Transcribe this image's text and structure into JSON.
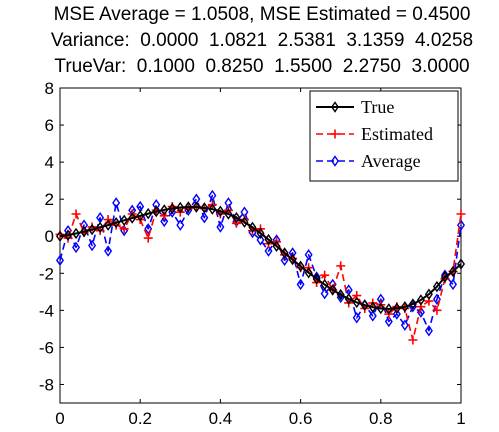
{
  "chart_data": {
    "type": "line",
    "title_lines": [
      "MSE Average = 1.0508, MSE Estimated = 0.4500",
      "Variance:  0.0000  1.0821  2.5381  3.1359  4.0258",
      "TrueVar:  0.1000  0.8250  1.5500  2.2750  3.0000"
    ],
    "xlim": [
      0,
      1
    ],
    "ylim": [
      -9,
      8
    ],
    "x_ticks": [
      0,
      0.2,
      0.4,
      0.6,
      0.8,
      1
    ],
    "x_tick_labels": [
      "0",
      "0.2",
      "0.4",
      "0.6",
      "0.8",
      "1"
    ],
    "y_ticks": [
      -8,
      -6,
      -4,
      -2,
      0,
      2,
      4,
      6,
      8
    ],
    "y_tick_labels": [
      "-8",
      "-6",
      "-4",
      "-2",
      "0",
      "2",
      "4",
      "6",
      "8"
    ],
    "grid": false,
    "legend_position": "top-right",
    "series": [
      {
        "name": "True",
        "color": "#000000",
        "line_style": "solid",
        "marker": "diamond",
        "x": [
          0.0,
          0.02,
          0.04,
          0.06,
          0.08,
          0.1,
          0.12,
          0.14,
          0.16,
          0.18,
          0.2,
          0.22,
          0.24,
          0.26,
          0.28,
          0.3,
          0.32,
          0.34,
          0.36,
          0.38,
          0.4,
          0.42,
          0.44,
          0.46,
          0.48,
          0.5,
          0.52,
          0.54,
          0.56,
          0.58,
          0.6,
          0.62,
          0.64,
          0.66,
          0.68,
          0.7,
          0.72,
          0.74,
          0.76,
          0.78,
          0.8,
          0.82,
          0.84,
          0.86,
          0.88,
          0.9,
          0.92,
          0.94,
          0.96,
          0.98,
          1.0
        ],
        "y": [
          0.0,
          0.06,
          0.15,
          0.25,
          0.36,
          0.48,
          0.6,
          0.73,
          0.86,
          0.98,
          1.1,
          1.22,
          1.33,
          1.42,
          1.5,
          1.55,
          1.58,
          1.57,
          1.53,
          1.46,
          1.35,
          1.2,
          1.0,
          0.76,
          0.48,
          0.16,
          -0.18,
          -0.54,
          -0.9,
          -1.26,
          -1.62,
          -1.97,
          -2.3,
          -2.61,
          -2.9,
          -3.15,
          -3.38,
          -3.57,
          -3.72,
          -3.83,
          -3.9,
          -3.92,
          -3.89,
          -3.81,
          -3.66,
          -3.44,
          -3.13,
          -2.72,
          -2.2,
          -1.9,
          -1.5
        ]
      },
      {
        "name": "Estimated",
        "color": "#ff0000",
        "line_style": "dashed",
        "marker": "plus",
        "x": [
          0.0,
          0.02,
          0.04,
          0.06,
          0.08,
          0.1,
          0.12,
          0.14,
          0.16,
          0.18,
          0.2,
          0.22,
          0.24,
          0.26,
          0.28,
          0.3,
          0.32,
          0.34,
          0.36,
          0.38,
          0.4,
          0.42,
          0.44,
          0.46,
          0.48,
          0.5,
          0.52,
          0.54,
          0.56,
          0.58,
          0.6,
          0.62,
          0.64,
          0.66,
          0.68,
          0.7,
          0.72,
          0.74,
          0.76,
          0.78,
          0.8,
          0.82,
          0.84,
          0.86,
          0.88,
          0.9,
          0.92,
          0.94,
          0.96,
          0.98,
          1.0
        ],
        "y": [
          0.1,
          -0.1,
          1.2,
          0.2,
          0.5,
          0.3,
          0.9,
          0.6,
          0.4,
          1.2,
          0.9,
          -0.1,
          1.4,
          1.1,
          1.6,
          1.3,
          1.5,
          1.6,
          1.5,
          1.7,
          1.2,
          1.4,
          0.7,
          0.9,
          0.3,
          0.4,
          -0.4,
          -0.3,
          -1.0,
          -1.2,
          -1.7,
          -1.7,
          -2.5,
          -2.1,
          -2.9,
          -1.6,
          -3.6,
          -3.2,
          -3.9,
          -3.6,
          -3.7,
          -4.2,
          -3.8,
          -3.9,
          -5.6,
          -3.8,
          -3.5,
          -4.0,
          -2.3,
          -1.9,
          1.2
        ]
      },
      {
        "name": "Average",
        "color": "#0000ff",
        "line_style": "dashed",
        "marker": "diamond",
        "x": [
          0.0,
          0.02,
          0.04,
          0.06,
          0.08,
          0.1,
          0.12,
          0.14,
          0.16,
          0.18,
          0.2,
          0.22,
          0.24,
          0.26,
          0.28,
          0.3,
          0.32,
          0.34,
          0.36,
          0.38,
          0.4,
          0.42,
          0.44,
          0.46,
          0.48,
          0.5,
          0.52,
          0.54,
          0.56,
          0.58,
          0.6,
          0.62,
          0.64,
          0.66,
          0.68,
          0.7,
          0.72,
          0.74,
          0.76,
          0.78,
          0.8,
          0.82,
          0.84,
          0.86,
          0.88,
          0.9,
          0.92,
          0.94,
          0.96,
          0.98,
          1.0
        ],
        "y": [
          -1.3,
          0.3,
          -0.6,
          0.6,
          -0.5,
          1.0,
          -0.8,
          1.8,
          0.3,
          1.4,
          1.6,
          0.4,
          1.7,
          0.8,
          1.3,
          0.6,
          1.4,
          2.0,
          1.0,
          2.2,
          0.5,
          1.8,
          0.8,
          1.3,
          0.2,
          -0.2,
          -0.8,
          -0.2,
          -1.3,
          -0.9,
          -2.6,
          -1.0,
          -2.2,
          -3.1,
          -2.6,
          -3.3,
          -2.9,
          -4.4,
          -3.7,
          -4.3,
          -3.4,
          -4.6,
          -4.2,
          -4.8,
          -3.8,
          -4.1,
          -5.1,
          -3.4,
          -2.1,
          -2.6,
          0.6
        ]
      }
    ]
  }
}
